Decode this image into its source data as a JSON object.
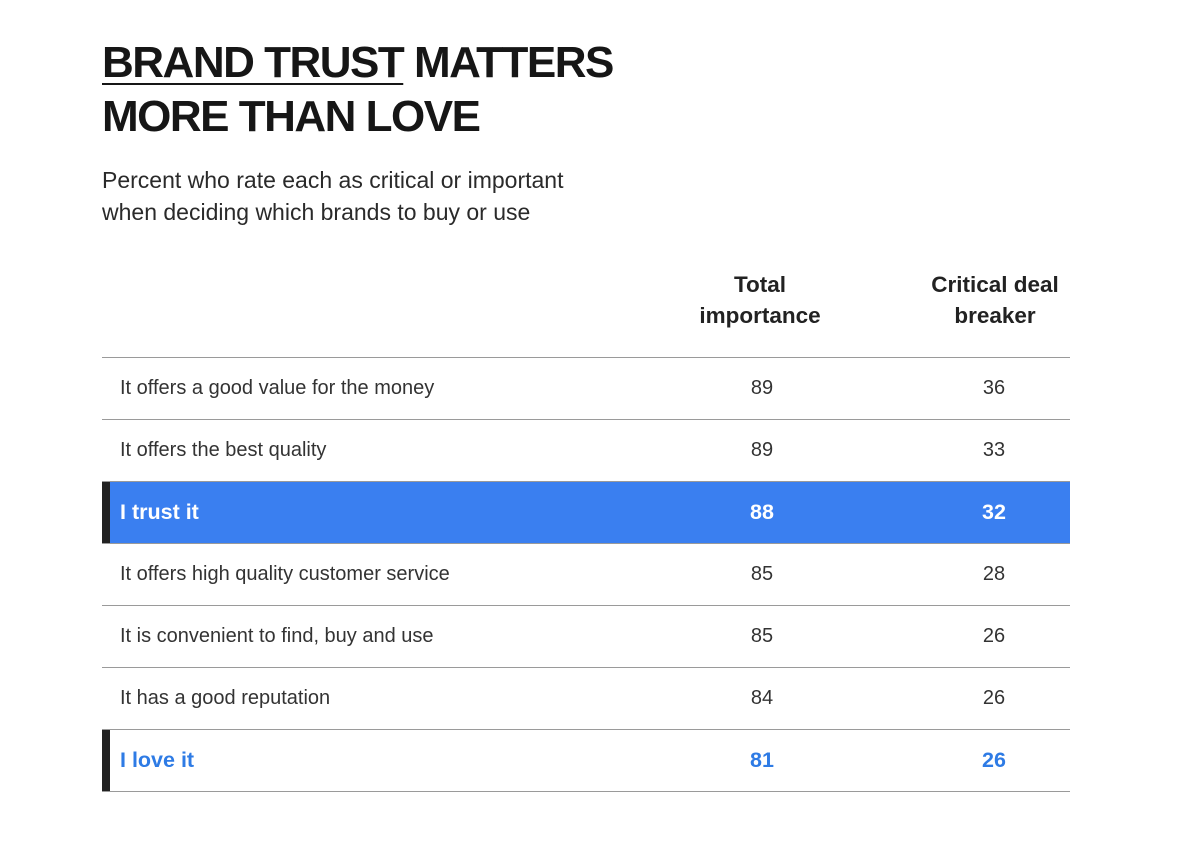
{
  "chart_data": {
    "type": "table",
    "title_line1_underlined": "BRAND TRUST",
    "title_line1_rest": " MATTERS",
    "title_line2": "MORE THAN LOVE",
    "subtitle_line1": "Percent who rate each as critical or important",
    "subtitle_line2": "when deciding which brands to buy or use",
    "columns": [
      {
        "line1": "Total",
        "line2": "importance"
      },
      {
        "line1": "Critical deal",
        "line2": "breaker"
      }
    ],
    "rows": [
      {
        "label": "It offers a good value for the money",
        "total": 89,
        "critical": 36,
        "style": "normal"
      },
      {
        "label": "It offers the best quality",
        "total": 89,
        "critical": 33,
        "style": "normal"
      },
      {
        "label": "I trust it",
        "total": 88,
        "critical": 32,
        "style": "filled"
      },
      {
        "label": "It offers high quality customer service",
        "total": 85,
        "critical": 28,
        "style": "normal"
      },
      {
        "label": "It is convenient to find, buy and use",
        "total": 85,
        "critical": 26,
        "style": "normal"
      },
      {
        "label": "It has a good reputation",
        "total": 84,
        "critical": 26,
        "style": "normal"
      },
      {
        "label": "I love it",
        "total": 81,
        "critical": 26,
        "style": "accent-text"
      }
    ],
    "colors": {
      "highlight_fill": "#3a7ff0",
      "highlight_text": "#2e7be5",
      "marker": "#222222",
      "rule": "#9a9a9a"
    }
  }
}
